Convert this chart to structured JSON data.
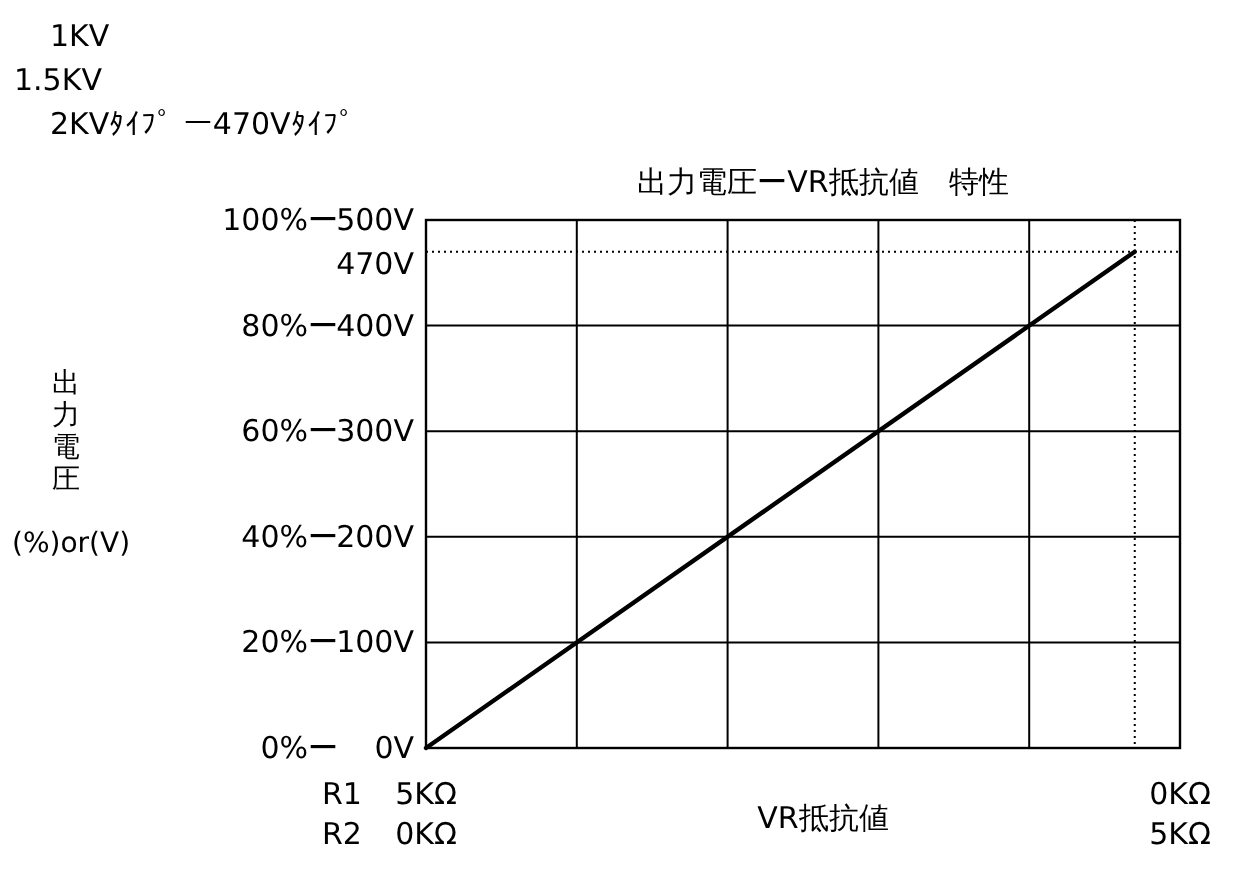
{
  "chart_data": {
    "type": "line",
    "title": "出力電圧ーVR抵抗値　特性",
    "xlabel": "VR抵抗値",
    "ylabel": "出力電圧\n(%)or(V)",
    "annotations": [
      "1KV",
      "1.5KV",
      "2KVﾀｲﾌﾟ ー470Vﾀｲﾌﾟ",
      "R1",
      "R2"
    ],
    "x": [
      0,
      4.7
    ],
    "series": [
      {
        "color": "#000000",
        "values": [
          0,
          470
        ],
        "axis": "y2"
      }
    ],
    "xlim": [
      0,
      5
    ],
    "xticks": [
      {
        "value": 0,
        "label": "0KΩ"
      },
      {
        "value": 1,
        "label": null
      },
      {
        "value": 2,
        "label": null
      },
      {
        "value": 3,
        "label": null
      },
      {
        "value": 4,
        "label": null
      },
      {
        "value": 5,
        "label": "5KΩ"
      }
    ],
    "x2lim": [
      5,
      0
    ],
    "x2ticks": [
      {
        "value": 5,
        "label": "5KΩ"
      },
      {
        "value": 0,
        "label": "0KΩ"
      }
    ],
    "ylim": [
      0,
      100
    ],
    "yticks": [
      {
        "value": 0,
        "label": "0%ー"
      },
      {
        "value": 20,
        "label": "20%ー"
      },
      {
        "value": 40,
        "label": "40%ー"
      },
      {
        "value": 60,
        "label": "60%ー"
      },
      {
        "value": 80,
        "label": "80%ー"
      },
      {
        "value": 100,
        "label": "100%ー"
      }
    ],
    "y2lim": [
      0,
      500
    ],
    "y2ticks": [
      {
        "value": 0,
        "label": "0V"
      },
      {
        "value": 100,
        "label": "100V"
      },
      {
        "value": 200,
        "label": "200V"
      },
      {
        "value": 300,
        "label": "300V"
      },
      {
        "value": 400,
        "label": "400V"
      },
      {
        "value": 500,
        "label": "500V"
      }
    ],
    "ref_lines": [
      {
        "axis": "y2",
        "value": 470,
        "label": "470V",
        "line_style": "dotted"
      },
      {
        "axis": "x",
        "value": 4.7,
        "label": null,
        "line_style": "dotted"
      }
    ],
    "grid": true,
    "marker": "none",
    "line_style": "solid"
  }
}
